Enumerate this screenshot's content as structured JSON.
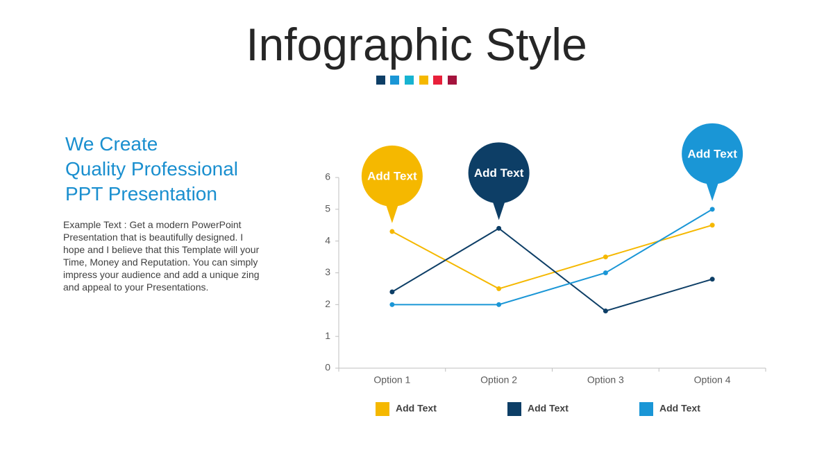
{
  "slide": {
    "title": "Infographic Style",
    "heading": [
      "We Create",
      "Quality Professional",
      "PPT Presentation"
    ],
    "body": "Example Text : Get a modern PowerPoint Presentation that is beautifully designed. I hope and I believe that this Template will your Time, Money and Reputation. You can simply impress your audience and add a unique zing and appeal to your Presentations."
  },
  "chart_data": {
    "type": "line",
    "categories": [
      "Option 1",
      "Option 2",
      "Option 3",
      "Option 4"
    ],
    "series": [
      {
        "name": "Add Text",
        "color": "#f5b800",
        "values": [
          4.3,
          2.5,
          3.5,
          4.5
        ]
      },
      {
        "name": "Add Text",
        "color": "#0d3e66",
        "values": [
          2.4,
          4.4,
          1.8,
          2.8
        ]
      },
      {
        "name": "Add Text",
        "color": "#1a96d6",
        "values": [
          2,
          2,
          3,
          5
        ]
      }
    ],
    "annotations": [
      "Add Text",
      "Add Text",
      "Add Text"
    ],
    "ylim": [
      0,
      6
    ],
    "yticks": [
      0,
      1,
      2,
      3,
      4,
      5,
      6
    ],
    "grid": false,
    "legend": "bottom"
  }
}
